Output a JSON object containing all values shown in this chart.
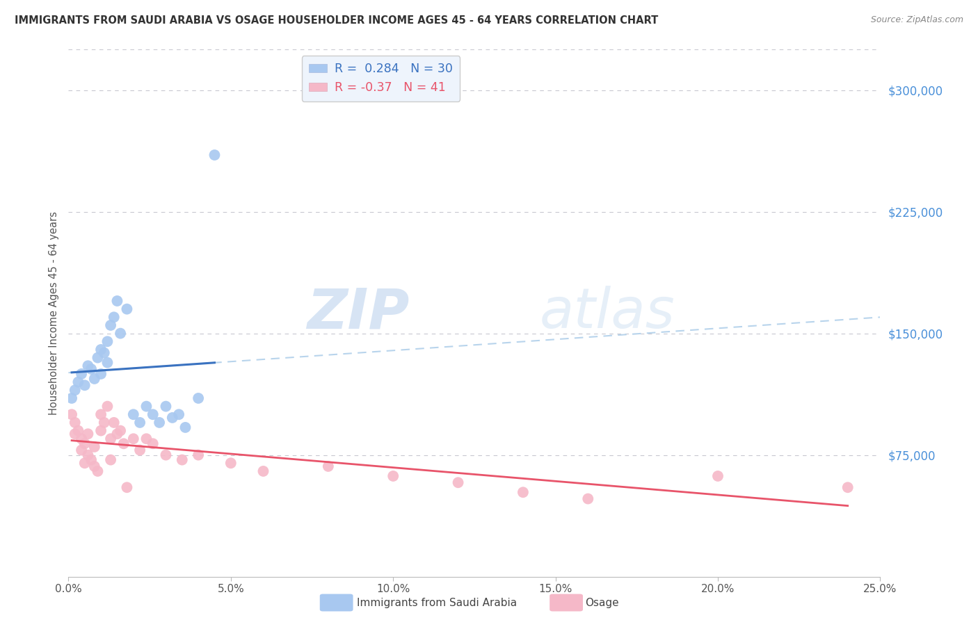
{
  "title": "IMMIGRANTS FROM SAUDI ARABIA VS OSAGE HOUSEHOLDER INCOME AGES 45 - 64 YEARS CORRELATION CHART",
  "source": "Source: ZipAtlas.com",
  "ylabel": "Householder Income Ages 45 - 64 years",
  "xlabel_ticks": [
    "0.0%",
    "5.0%",
    "10.0%",
    "15.0%",
    "20.0%",
    "25.0%"
  ],
  "xlabel_vals": [
    0.0,
    0.05,
    0.1,
    0.15,
    0.2,
    0.25
  ],
  "ytick_labels": [
    "$75,000",
    "$150,000",
    "$225,000",
    "$300,000"
  ],
  "ytick_vals": [
    75000,
    150000,
    225000,
    300000
  ],
  "ylim": [
    0,
    325000
  ],
  "xlim": [
    0.0,
    0.25
  ],
  "blue_R": 0.284,
  "blue_N": 30,
  "pink_R": -0.37,
  "pink_N": 41,
  "blue_color": "#A8C8F0",
  "pink_color": "#F5B8C8",
  "blue_line_color": "#3A72C0",
  "pink_line_color": "#E8546A",
  "dashed_line_color": "#B8D4EC",
  "background_color": "#FFFFFF",
  "grid_color": "#C8C8D0",
  "title_color": "#333333",
  "axis_label_color": "#666666",
  "ytick_color": "#4A90D9",
  "legend_box_color": "#EEF4FC",
  "watermark_color": "#C8DCF0",
  "blue_scatter_x": [
    0.001,
    0.002,
    0.003,
    0.004,
    0.005,
    0.006,
    0.007,
    0.008,
    0.009,
    0.01,
    0.01,
    0.011,
    0.012,
    0.012,
    0.013,
    0.014,
    0.015,
    0.016,
    0.018,
    0.02,
    0.022,
    0.024,
    0.026,
    0.028,
    0.03,
    0.032,
    0.034,
    0.036,
    0.04,
    0.045
  ],
  "blue_scatter_y": [
    110000,
    115000,
    120000,
    125000,
    118000,
    130000,
    128000,
    122000,
    135000,
    140000,
    125000,
    138000,
    145000,
    132000,
    155000,
    160000,
    170000,
    150000,
    165000,
    100000,
    95000,
    105000,
    100000,
    95000,
    105000,
    98000,
    100000,
    92000,
    110000,
    260000
  ],
  "pink_scatter_x": [
    0.001,
    0.002,
    0.002,
    0.003,
    0.004,
    0.004,
    0.005,
    0.005,
    0.006,
    0.006,
    0.007,
    0.008,
    0.008,
    0.009,
    0.01,
    0.01,
    0.011,
    0.012,
    0.013,
    0.013,
    0.014,
    0.015,
    0.016,
    0.017,
    0.018,
    0.02,
    0.022,
    0.024,
    0.026,
    0.03,
    0.035,
    0.04,
    0.05,
    0.06,
    0.08,
    0.1,
    0.12,
    0.14,
    0.16,
    0.2,
    0.24
  ],
  "pink_scatter_y": [
    100000,
    95000,
    88000,
    90000,
    85000,
    78000,
    82000,
    70000,
    88000,
    75000,
    72000,
    68000,
    80000,
    65000,
    100000,
    90000,
    95000,
    105000,
    85000,
    72000,
    95000,
    88000,
    90000,
    82000,
    55000,
    85000,
    78000,
    85000,
    82000,
    75000,
    72000,
    75000,
    70000,
    65000,
    68000,
    62000,
    58000,
    52000,
    48000,
    62000,
    55000
  ]
}
